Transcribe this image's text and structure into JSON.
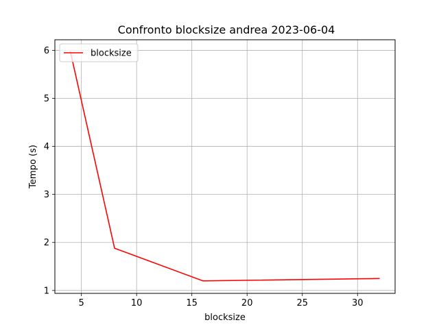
{
  "chart_data": {
    "type": "line",
    "title": "Confronto blocksize andrea 2023-06-04",
    "xlabel": "blocksize",
    "ylabel": "Tempo (s)",
    "xlim": [
      2.6,
      33.4
    ],
    "ylim": [
      0.94,
      6.22
    ],
    "xticks": [
      5,
      10,
      15,
      20,
      25,
      30
    ],
    "yticks": [
      1,
      2,
      3,
      4,
      5,
      6
    ],
    "grid": true,
    "legend_position": "upper-left",
    "series": [
      {
        "name": "blocksize",
        "color": "#ff0000",
        "x": [
          4,
          8,
          16,
          32
        ],
        "y": [
          5.98,
          1.88,
          1.2,
          1.25
        ]
      }
    ]
  }
}
